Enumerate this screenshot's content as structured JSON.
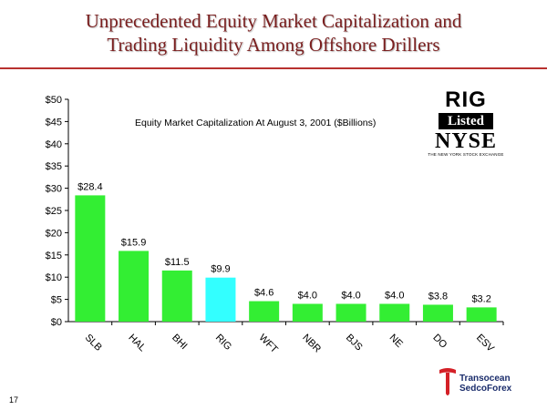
{
  "slide": {
    "title_line1": "Unprecedented Equity Market Capitalization and",
    "title_line2": "Trading Liquidity Among Offshore Drillers",
    "page_number": "17"
  },
  "badge": {
    "rig": "RIG",
    "listed": "Listed",
    "nyse": "NYSE",
    "nyse_sub": "THE NEW YORK STOCK EXCHANGE"
  },
  "logo": {
    "line1": "Transocean",
    "line2": "SedcoForex"
  },
  "colors": {
    "bar": "#33ee33",
    "highlight_bar": "#33ffff",
    "title": "#7a1f1f",
    "rule": "#b8312f"
  },
  "chart_data": {
    "type": "bar",
    "title": "Equity Market Capitalization At August 3, 2001 ($Billions)",
    "categories": [
      "SLB",
      "HAL",
      "BHI",
      "RIG",
      "WFT",
      "NBR",
      "BJS",
      "NE",
      "DO",
      "ESV"
    ],
    "values": [
      28.4,
      15.9,
      11.5,
      9.9,
      4.6,
      4.0,
      4.0,
      4.0,
      3.8,
      3.2
    ],
    "data_labels": [
      "$28.4",
      "$15.9",
      "$11.5",
      "$9.9",
      "$4.6",
      "$4.0",
      "$4.0",
      "$4.0",
      "$3.8",
      "$3.2"
    ],
    "highlight_category": "RIG",
    "ylim": [
      0,
      50
    ],
    "yticks": [
      0,
      5,
      10,
      15,
      20,
      25,
      30,
      35,
      40,
      45,
      50
    ],
    "ytick_labels": [
      "$0",
      "$5",
      "$10",
      "$15",
      "$20",
      "$25",
      "$30",
      "$35",
      "$40",
      "$45",
      "$50"
    ],
    "xlabel": "",
    "ylabel": "",
    "grid": false,
    "legend": "none"
  }
}
